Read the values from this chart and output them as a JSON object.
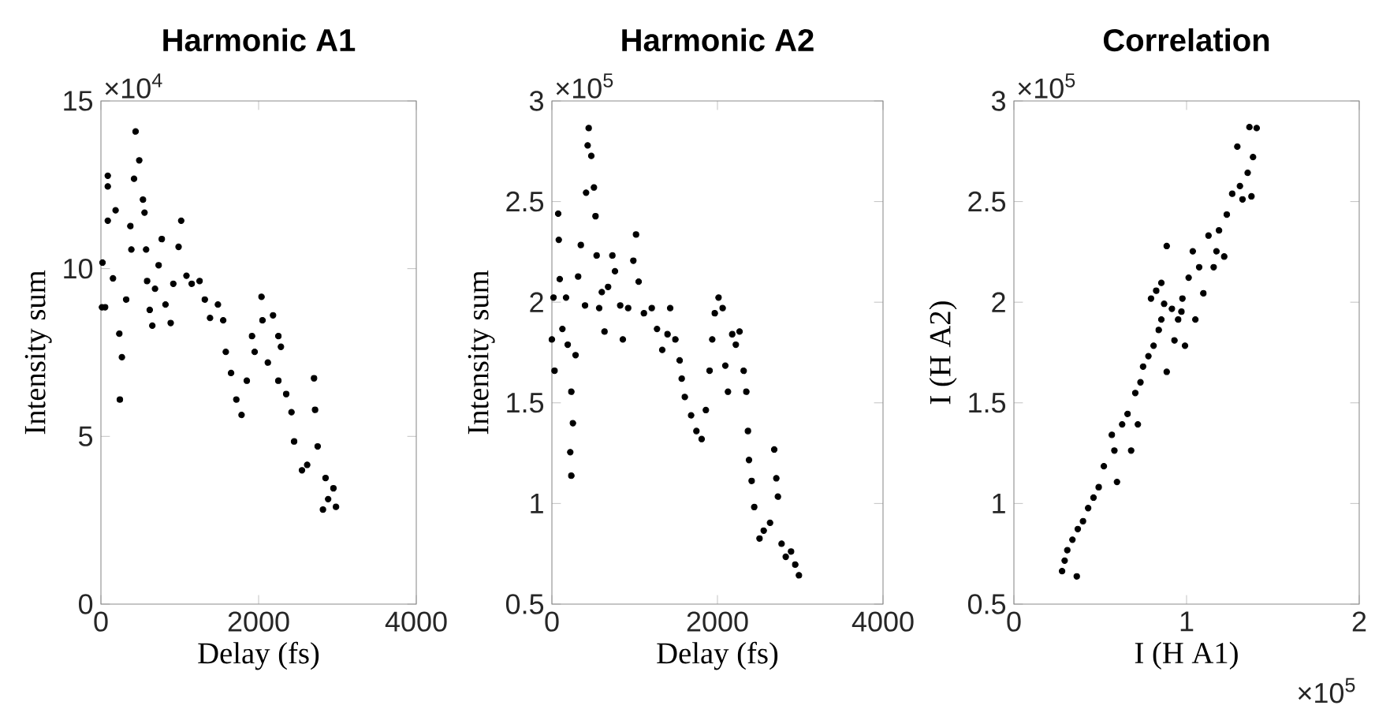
{
  "chart_data": [
    {
      "type": "scatter",
      "title": "Harmonic A1",
      "xlabel": "Delay (fs)",
      "ylabel": "Intensity sum",
      "annotations": [
        "×10$^{4}$"
      ],
      "color": "#000000",
      "xlim": [
        0,
        4000
      ],
      "ylim": [
        0,
        15
      ],
      "xticks": [
        0,
        2000,
        4000
      ],
      "yticks": [
        0,
        5,
        10,
        15
      ],
      "x": [
        13,
        20,
        53,
        87,
        87,
        87,
        153,
        186,
        233,
        240,
        266,
        320,
        373,
        386,
        420,
        440,
        486,
        533,
        553,
        573,
        586,
        619,
        652,
        686,
        732,
        772,
        819,
        885,
        918,
        985,
        1018,
        1085,
        1151,
        1251,
        1318,
        1384,
        1484,
        1551,
        1584,
        1651,
        1717,
        1784,
        1850,
        1917,
        1950,
        2037,
        2050,
        2117,
        2183,
        2250,
        2283,
        2250,
        2350,
        2417,
        2450,
        2550,
        2616,
        2703,
        2716,
        2749,
        2849,
        2882,
        2949,
        2982,
        2816
      ],
      "values": [
        8.85,
        10.18,
        8.85,
        12.77,
        11.43,
        12.45,
        9.71,
        11.74,
        8.06,
        6.1,
        7.36,
        9.08,
        11.27,
        10.57,
        12.68,
        14.09,
        13.23,
        12.06,
        11.67,
        10.57,
        9.63,
        8.77,
        8.3,
        9.4,
        10.1,
        10.88,
        8.93,
        8.38,
        9.55,
        10.65,
        11.43,
        9.79,
        9.55,
        9.63,
        9.08,
        8.53,
        8.93,
        8.46,
        7.52,
        6.89,
        6.1,
        5.64,
        6.66,
        7.99,
        7.52,
        9.16,
        8.46,
        7.2,
        8.61,
        7.99,
        7.67,
        6.66,
        6.26,
        5.72,
        4.85,
        3.99,
        4.15,
        6.73,
        5.79,
        4.7,
        3.76,
        3.13,
        3.45,
        2.9,
        2.82
      ]
    },
    {
      "type": "scatter",
      "title": "Harmonic A2",
      "xlabel": "Delay (fs)",
      "ylabel": "Intensity sum",
      "annotations": [
        "×10$^{5}$"
      ],
      "color": "#000000",
      "xlim": [
        0,
        4000
      ],
      "ylim": [
        0.5,
        3
      ],
      "xticks": [
        0,
        2000,
        4000
      ],
      "yticks": [
        0.5,
        1,
        1.5,
        2,
        2.5,
        3
      ],
      "x": [
        0,
        19,
        32,
        76,
        83,
        95,
        127,
        171,
        191,
        235,
        254,
        222,
        235,
        286,
        317,
        349,
        400,
        413,
        432,
        444,
        476,
        508,
        527,
        540,
        571,
        603,
        635,
        679,
        730,
        762,
        825,
        857,
        921,
        984,
        1016,
        1048,
        1111,
        1206,
        1270,
        1333,
        1397,
        1429,
        1492,
        1543,
        1568,
        1606,
        1682,
        1746,
        1809,
        1860,
        1905,
        1937,
        1968,
        2013,
        2063,
        2095,
        2127,
        2178,
        2222,
        2267,
        2317,
        2349,
        2368,
        2381,
        2413,
        2444,
        2508,
        2559,
        2635,
        2686,
        2711,
        2730,
        2775,
        2825,
        2889,
        2940,
        2984
      ],
      "values": [
        1.815,
        2.023,
        1.659,
        2.44,
        2.31,
        2.115,
        1.867,
        2.023,
        1.789,
        1.555,
        1.399,
        1.255,
        1.138,
        1.737,
        2.128,
        2.284,
        1.984,
        2.544,
        2.779,
        2.865,
        2.727,
        2.57,
        2.427,
        2.232,
        1.971,
        2.05,
        1.854,
        2.076,
        2.232,
        2.154,
        1.984,
        1.815,
        1.971,
        2.206,
        2.336,
        2.102,
        1.945,
        1.971,
        1.867,
        1.763,
        1.841,
        1.971,
        1.815,
        1.711,
        1.62,
        1.529,
        1.438,
        1.36,
        1.32,
        1.464,
        1.659,
        1.815,
        1.945,
        2.023,
        1.971,
        1.685,
        1.555,
        1.841,
        1.789,
        1.854,
        1.659,
        1.555,
        1.36,
        1.216,
        1.112,
        0.982,
        0.826,
        0.865,
        0.904,
        1.268,
        1.125,
        1.034,
        0.8,
        0.735,
        0.761,
        0.696,
        0.643
      ]
    },
    {
      "type": "scatter",
      "title": "Correlation",
      "xlabel": "I (H A1)",
      "ylabel": "I (H A2)",
      "annotations": [
        "×10$^{5}$",
        "×10$^{5}$"
      ],
      "color": "#000000",
      "xlim": [
        0,
        2
      ],
      "ylim": [
        0.5,
        3
      ],
      "xticks": [
        0,
        1,
        2
      ],
      "yticks": [
        0.5,
        1,
        1.5,
        2,
        2.5,
        3
      ],
      "x": [
        0.279,
        0.294,
        0.309,
        0.339,
        0.364,
        0.37,
        0.4,
        0.43,
        0.461,
        0.491,
        0.521,
        0.582,
        0.597,
        0.567,
        0.627,
        0.658,
        0.679,
        0.703,
        0.718,
        0.733,
        0.748,
        0.779,
        0.809,
        0.839,
        0.854,
        0.87,
        0.885,
        0.885,
        0.915,
        0.93,
        0.951,
        0.97,
        0.976,
        0.991,
        1.012,
        1.036,
        1.051,
        1.073,
        1.097,
        1.127,
        1.157,
        1.173,
        1.188,
        1.218,
        1.233,
        1.264,
        1.294,
        1.309,
        1.324,
        1.354,
        1.364,
        1.385,
        1.406,
        1.376,
        0.794,
        0.824,
        0.854
      ],
      "values": [
        0.664,
        0.716,
        0.768,
        0.82,
        0.638,
        0.873,
        0.912,
        0.977,
        1.029,
        1.081,
        1.185,
        1.263,
        1.107,
        1.341,
        1.393,
        1.445,
        1.263,
        1.549,
        1.393,
        1.602,
        1.68,
        1.732,
        1.784,
        1.862,
        1.914,
        1.992,
        1.654,
        2.279,
        1.967,
        1.81,
        1.914,
        1.953,
        2.018,
        1.784,
        2.122,
        2.253,
        1.914,
        2.174,
        2.044,
        2.331,
        2.174,
        2.253,
        2.357,
        2.227,
        2.435,
        2.539,
        2.773,
        2.577,
        2.511,
        2.643,
        2.87,
        2.721,
        2.865,
        2.526,
        2.018,
        2.057,
        2.096
      ]
    }
  ]
}
